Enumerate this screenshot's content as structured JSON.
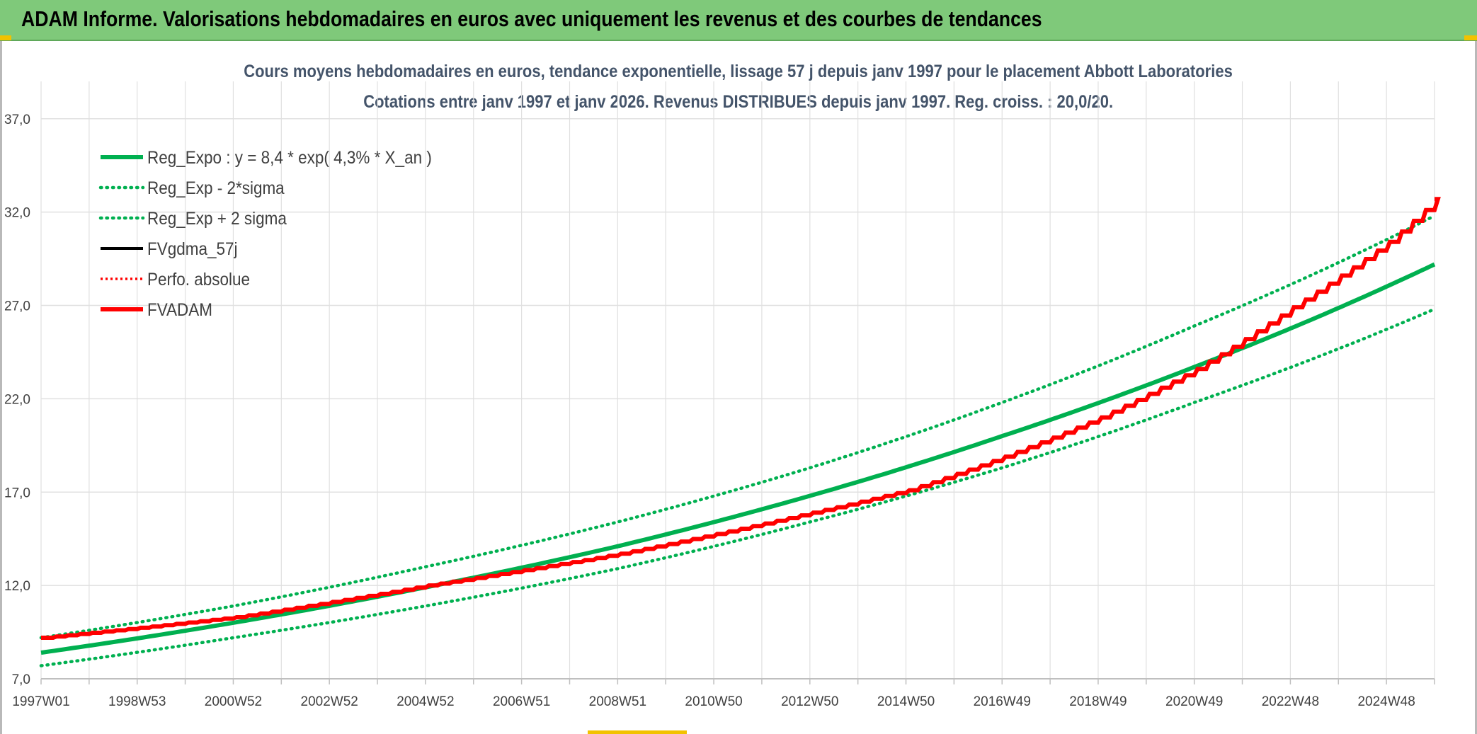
{
  "header": {
    "title": "ADAM Informe. Valorisations hebdomadaires en euros avec uniquement les revenus et des courbes de tendances"
  },
  "chart_data": {
    "type": "line",
    "title": "Cours moyens hebdomadaires en euros, tendance exponentielle, lissage 57 j depuis janv 1997 pour le placement Abbott Laboratories",
    "subtitle": "Cotations entre janv 1997 et janv 2026. Revenus DISTRIBUES depuis janv 1997. Reg. croiss. : 20,0/20.",
    "xlabel": "",
    "ylabel": "",
    "ylim": [
      7.0,
      39.0
    ],
    "y_ticks": [
      "7,0",
      "12,0",
      "17,0",
      "22,0",
      "27,0",
      "32,0",
      "37,0"
    ],
    "x_ticks": [
      "1997W01",
      "1998W53",
      "2000W52",
      "2002W52",
      "2004W52",
      "2006W51",
      "2008W51",
      "2010W50",
      "2012W50",
      "2014W50",
      "2016W49",
      "2018W49",
      "2020W49",
      "2022W48",
      "2024W48"
    ],
    "x_tick_years": [
      1997.0,
      1999.0,
      2001.0,
      2003.0,
      2005.0,
      2007.0,
      2009.0,
      2011.0,
      2013.0,
      2015.0,
      2017.0,
      2019.0,
      2021.0,
      2023.0,
      2025.0
    ],
    "x_range_years": [
      1997.0,
      2026.0
    ],
    "grid": true,
    "legend_position": "top-left",
    "colors": {
      "green": "#00b050",
      "red": "#ff0000",
      "black": "#000000",
      "text": "#44546a",
      "grid": "#e0e0e0"
    },
    "series": [
      {
        "name": "Reg_Expo : y = 8,4 * exp( 4,3% *  X_an )",
        "style": "solid",
        "color": "#00b050",
        "x": [
          1997.0,
          2001.0,
          2005.0,
          2009.0,
          2013.0,
          2017.0,
          2021.0,
          2026.0
        ],
        "values": [
          8.4,
          10.0,
          11.9,
          14.1,
          16.8,
          20.0,
          23.7,
          29.2
        ]
      },
      {
        "name": "Reg_Exp - 2*sigma",
        "style": "dotted",
        "color": "#00b050",
        "x": [
          1997.0,
          2001.0,
          2005.0,
          2009.0,
          2013.0,
          2017.0,
          2021.0,
          2026.0
        ],
        "values": [
          7.7,
          9.2,
          10.9,
          12.9,
          15.4,
          18.3,
          21.8,
          26.8
        ]
      },
      {
        "name": "Reg_Exp + 2 sigma",
        "style": "dotted",
        "color": "#00b050",
        "x": [
          1997.0,
          2001.0,
          2005.0,
          2009.0,
          2013.0,
          2017.0,
          2021.0,
          2026.0
        ],
        "values": [
          9.2,
          10.9,
          13.0,
          15.4,
          18.3,
          21.8,
          25.9,
          31.8
        ]
      },
      {
        "name": "FVgdma_57j",
        "style": "solid",
        "color": "#000000",
        "x": [
          1997.0,
          2001.0,
          2005.0,
          2009.0,
          2013.0,
          2015.0,
          2017.0,
          2019.0,
          2021.0,
          2023.0,
          2025.0,
          2026.0
        ],
        "values": [
          9.2,
          10.3,
          12.0,
          13.7,
          15.9,
          17.1,
          18.9,
          21.0,
          23.6,
          26.9,
          30.4,
          32.7
        ]
      },
      {
        "name": "Perfo. absolue",
        "style": "dotted",
        "color": "#ff0000",
        "x": [
          1997.0,
          2001.0,
          2005.0,
          2009.0,
          2013.0,
          2015.0,
          2017.0,
          2019.0,
          2021.0,
          2023.0,
          2025.0,
          2026.0
        ],
        "values": [
          9.2,
          10.3,
          12.0,
          13.7,
          15.9,
          17.1,
          18.9,
          21.0,
          23.6,
          26.9,
          30.4,
          32.7
        ]
      },
      {
        "name": "FVADAM",
        "style": "solid",
        "color": "#ff0000",
        "x": [
          1997.0,
          2001.0,
          2005.0,
          2009.0,
          2013.0,
          2015.0,
          2017.0,
          2019.0,
          2021.0,
          2023.0,
          2025.0,
          2026.0
        ],
        "values": [
          9.2,
          10.3,
          12.0,
          13.7,
          15.9,
          17.1,
          18.9,
          21.0,
          23.6,
          26.9,
          30.4,
          32.7
        ]
      }
    ]
  }
}
